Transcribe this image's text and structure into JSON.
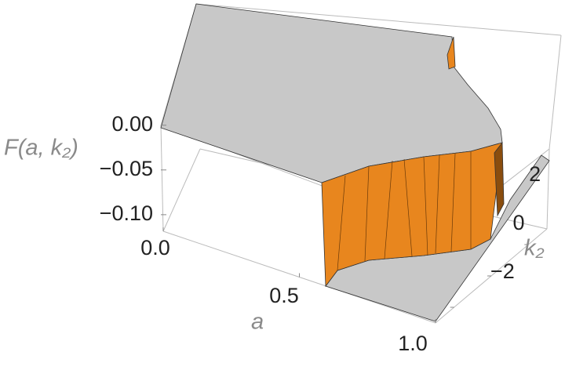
{
  "chart_data": {
    "type": "surface3d",
    "zlabel": "F(a, k₂)",
    "xlabel": "a",
    "ylabel": "k₂",
    "zlim": [
      -0.115,
      0.005
    ],
    "zticks": [
      {
        "value": 0,
        "label": "0.00"
      },
      {
        "value": -0.05,
        "label": "−0.05"
      },
      {
        "value": -0.1,
        "label": "−0.10"
      }
    ],
    "xlim": [
      0,
      1
    ],
    "xticks": [
      {
        "value": 0,
        "label": "0.0"
      },
      {
        "value": 0.5,
        "label": "0.5"
      },
      {
        "value": 1,
        "label": "1.0"
      }
    ],
    "ylim": [
      -3,
      3
    ],
    "yticks": [
      {
        "value": -2,
        "label": "−2"
      },
      0,
      2
    ],
    "color": "#e8861e"
  }
}
